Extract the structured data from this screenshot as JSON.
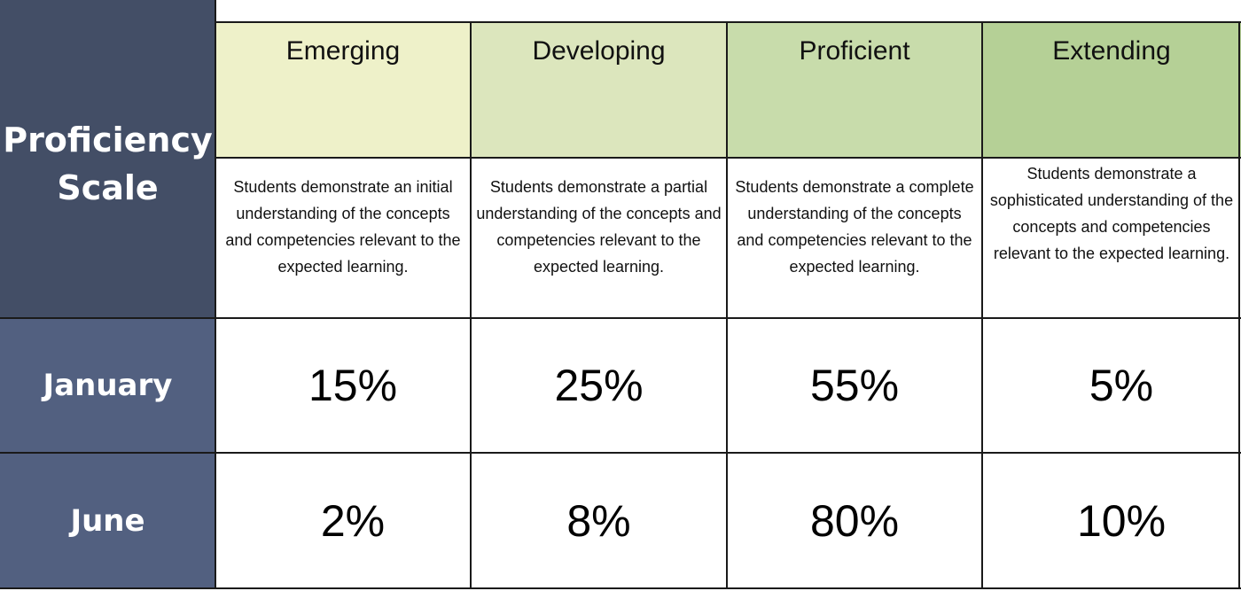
{
  "table": {
    "corner_label": "Proficiency Scale",
    "levels": [
      {
        "name": "Emerging",
        "color": "#eef1c9",
        "description": "Students demonstrate an initial understanding of the concepts and competencies relevant to the expected learning."
      },
      {
        "name": "Developing",
        "color": "#dce6bd",
        "description": "Students demonstrate a partial understanding of the concepts and competencies relevant to the expected learning."
      },
      {
        "name": "Proficient",
        "color": "#c8dcab",
        "description": "Students demonstrate a complete understanding of the concepts and competencies relevant to the expected learning."
      },
      {
        "name": "Extending",
        "color": "#b5d096",
        "description": "Students demonstrate a sophisticated understanding of the concepts and competencies relevant to the expected learning."
      }
    ],
    "header_dark": "#434e66",
    "row_dark": "#526080"
  },
  "chart_data": {
    "type": "table",
    "columns": [
      "Emerging",
      "Developing",
      "Proficient",
      "Extending"
    ],
    "rows": [
      {
        "label": "January",
        "values": [
          "15%",
          "25%",
          "55%",
          "5%"
        ]
      },
      {
        "label": "June",
        "values": [
          "2%",
          "8%",
          "80%",
          "10%"
        ]
      }
    ]
  }
}
